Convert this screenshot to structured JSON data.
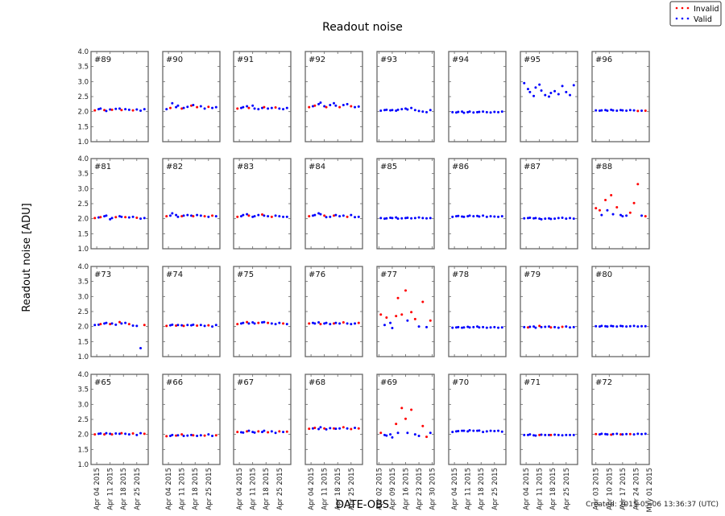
{
  "chart_data": {
    "type": "scatter",
    "title": "Readout noise",
    "ylabel": "Readout noise [ADU]",
    "xlabel": "DATE-OBS",
    "footer": "Created: 2015-05-06 13:36:37 (UTC)",
    "ylim": [
      1.0,
      4.0
    ],
    "yticks": [
      "1.0",
      "1.5",
      "2.0",
      "2.5",
      "3.0",
      "3.5",
      "4.0"
    ],
    "xlim_days_april_2015": [
      1,
      31
    ],
    "days": [
      3,
      5,
      6,
      8,
      9,
      11,
      12,
      14,
      16,
      17,
      19,
      21,
      23,
      25,
      27,
      29
    ],
    "legend": {
      "position": "top-right",
      "entries": [
        {
          "label": "Invalid",
          "color": "#ff0000"
        },
        {
          "label": "Valid",
          "color": "#0000ff"
        }
      ]
    },
    "xtick_sets": {
      "a": {
        "days": [
          4,
          11,
          18,
          25
        ],
        "labels": [
          "Apr 04 2015",
          "Apr 11 2015",
          "Apr 18 2015",
          "Apr 25 2015"
        ]
      },
      "b": {
        "days": [
          2,
          9,
          16,
          23,
          30
        ],
        "labels": [
          "Apr 02 2015",
          "Apr 09 2015",
          "Apr 16 2015",
          "Apr 23 2015",
          "Apr 30 2015"
        ]
      },
      "c": {
        "days": [
          3,
          10,
          17,
          24,
          31
        ],
        "labels": [
          "Apr 03 2015",
          "Apr 10 2015",
          "Apr 17 2015",
          "Apr 24 2015",
          "May 01 2015"
        ]
      }
    },
    "column_ticks": [
      "a",
      "a",
      "a",
      "a",
      "b",
      "a",
      "a",
      "c"
    ],
    "panels": [
      {
        "label": "#89",
        "values": [
          2.04,
          2.08,
          2.1,
          2.05,
          2.02,
          2.07,
          2.06,
          2.09,
          2.1,
          2.05,
          2.08,
          2.06,
          2.04,
          2.07,
          2.03,
          2.08
        ],
        "invalid": [
          0,
          3,
          6,
          9,
          12
        ]
      },
      {
        "label": "#90",
        "values": [
          2.08,
          2.12,
          2.28,
          2.15,
          2.2,
          2.1,
          2.12,
          2.16,
          2.2,
          2.22,
          2.15,
          2.18,
          2.1,
          2.16,
          2.12,
          2.15
        ],
        "invalid": [
          1,
          5,
          8,
          10,
          13
        ]
      },
      {
        "label": "#91",
        "values": [
          2.1,
          2.12,
          2.15,
          2.18,
          2.12,
          2.2,
          2.1,
          2.08,
          2.12,
          2.15,
          2.1,
          2.12,
          2.14,
          2.1,
          2.08,
          2.12
        ],
        "invalid": [
          0,
          4,
          9,
          12
        ]
      },
      {
        "label": "#92",
        "values": [
          2.15,
          2.18,
          2.2,
          2.25,
          2.3,
          2.18,
          2.15,
          2.22,
          2.28,
          2.2,
          2.15,
          2.22,
          2.25,
          2.18,
          2.15,
          2.17
        ],
        "invalid": [
          0,
          2,
          6,
          10,
          13
        ]
      },
      {
        "label": "#93",
        "values": [
          2.03,
          2.05,
          2.06,
          2.04,
          2.05,
          2.03,
          2.06,
          2.08,
          2.1,
          2.07,
          2.12,
          2.05,
          2.02,
          2.0,
          1.98,
          2.05
        ],
        "invalid": []
      },
      {
        "label": "#94",
        "values": [
          1.98,
          1.97,
          1.99,
          2.0,
          1.96,
          1.98,
          2.0,
          1.97,
          1.98,
          1.99,
          2.0,
          1.98,
          1.97,
          1.99,
          1.98,
          2.0
        ],
        "invalid": []
      },
      {
        "label": "#95",
        "values": [
          2.95,
          2.75,
          2.65,
          2.52,
          2.8,
          2.9,
          2.7,
          2.55,
          2.5,
          2.62,
          2.68,
          2.58,
          2.85,
          2.65,
          2.55,
          2.88
        ],
        "invalid": []
      },
      {
        "label": "#96",
        "values": [
          2.04,
          2.03,
          2.04,
          2.05,
          2.03,
          2.06,
          2.04,
          2.03,
          2.05,
          2.04,
          2.03,
          2.05,
          2.04,
          2.02,
          2.03,
          2.03
        ],
        "invalid": [
          13,
          15
        ]
      },
      {
        "label": "#81",
        "values": [
          2.02,
          2.04,
          2.05,
          2.08,
          2.1,
          1.98,
          2.02,
          2.05,
          2.08,
          2.06,
          2.05,
          2.04,
          2.06,
          2.03,
          2.0,
          2.02
        ],
        "invalid": [
          0,
          2,
          7,
          10,
          13
        ]
      },
      {
        "label": "#82",
        "values": [
          2.08,
          2.1,
          2.18,
          2.12,
          2.06,
          2.08,
          2.1,
          2.12,
          2.1,
          2.08,
          2.12,
          2.1,
          2.08,
          2.06,
          2.1,
          2.08
        ],
        "invalid": [
          0,
          5,
          9,
          12,
          14
        ]
      },
      {
        "label": "#83",
        "values": [
          2.06,
          2.08,
          2.12,
          2.15,
          2.1,
          2.06,
          2.08,
          2.12,
          2.14,
          2.1,
          2.08,
          2.06,
          2.1,
          2.08,
          2.06,
          2.06
        ],
        "invalid": [
          0,
          4,
          8,
          11
        ]
      },
      {
        "label": "#84",
        "values": [
          2.08,
          2.1,
          2.12,
          2.18,
          2.15,
          2.1,
          2.05,
          2.06,
          2.1,
          2.12,
          2.08,
          2.1,
          2.06,
          2.12,
          2.05,
          2.06
        ],
        "invalid": [
          0,
          5,
          8,
          12
        ]
      },
      {
        "label": "#85",
        "values": [
          2.02,
          2.0,
          2.01,
          2.03,
          2.02,
          2.04,
          2.0,
          2.01,
          2.02,
          2.03,
          2.01,
          2.02,
          2.04,
          2.02,
          2.01,
          2.02
        ],
        "invalid": []
      },
      {
        "label": "#86",
        "values": [
          2.06,
          2.08,
          2.09,
          2.07,
          2.06,
          2.08,
          2.1,
          2.08,
          2.09,
          2.07,
          2.1,
          2.06,
          2.08,
          2.07,
          2.06,
          2.08
        ],
        "invalid": []
      },
      {
        "label": "#87",
        "values": [
          2.01,
          2.02,
          2.03,
          2.01,
          2.02,
          2.0,
          1.98,
          2.0,
          2.01,
          1.99,
          2.0,
          2.02,
          2.03,
          2.0,
          2.02,
          2.0
        ],
        "invalid": []
      },
      {
        "label": "#88",
        "values": [
          2.35,
          2.28,
          2.12,
          2.62,
          2.28,
          2.78,
          2.15,
          2.38,
          2.12,
          2.08,
          2.1,
          2.2,
          2.52,
          3.15,
          2.1,
          2.08
        ],
        "invalid": [
          0,
          1,
          3,
          5,
          7,
          11,
          12,
          13,
          15
        ]
      },
      {
        "label": "#73",
        "values": [
          2.05,
          2.06,
          2.08,
          2.1,
          2.12,
          2.08,
          2.1,
          2.06,
          2.15,
          2.1,
          2.12,
          2.08,
          2.03,
          2.02,
          1.28,
          2.05
        ],
        "invalid": [
          2,
          5,
          8,
          11,
          15
        ]
      },
      {
        "label": "#74",
        "values": [
          2.02,
          2.04,
          2.06,
          2.03,
          2.05,
          2.04,
          2.02,
          2.05,
          2.04,
          2.06,
          2.03,
          2.05,
          2.02,
          2.04,
          2.0,
          2.05
        ],
        "invalid": [
          0,
          3,
          6,
          10,
          13
        ]
      },
      {
        "label": "#75",
        "values": [
          2.08,
          2.1,
          2.12,
          2.15,
          2.1,
          2.14,
          2.1,
          2.12,
          2.14,
          2.15,
          2.12,
          2.1,
          2.08,
          2.12,
          2.1,
          2.08
        ],
        "invalid": [
          0,
          3,
          7,
          10,
          14
        ]
      },
      {
        "label": "#76",
        "values": [
          2.1,
          2.12,
          2.1,
          2.14,
          2.08,
          2.1,
          2.12,
          2.08,
          2.1,
          2.12,
          2.1,
          2.14,
          2.1,
          2.08,
          2.1,
          2.12
        ],
        "invalid": [
          0,
          4,
          8,
          11,
          15
        ]
      },
      {
        "label": "#77",
        "values": [
          2.4,
          2.05,
          2.3,
          2.12,
          1.95,
          2.35,
          2.95,
          2.4,
          3.2,
          2.2,
          2.48,
          2.25,
          2.0,
          2.82,
          1.98,
          2.2
        ],
        "invalid": [
          0,
          2,
          5,
          6,
          7,
          8,
          10,
          11,
          13,
          15
        ]
      },
      {
        "label": "#78",
        "values": [
          1.96,
          1.97,
          1.98,
          1.96,
          1.97,
          1.99,
          1.97,
          1.98,
          2.0,
          1.97,
          1.98,
          1.96,
          1.97,
          1.98,
          1.96,
          1.97
        ],
        "invalid": []
      },
      {
        "label": "#79",
        "values": [
          1.98,
          1.97,
          1.99,
          2.0,
          1.96,
          2.02,
          1.98,
          1.99,
          2.0,
          1.97,
          1.98,
          1.96,
          1.99,
          2.0,
          1.97,
          1.98
        ],
        "invalid": [
          1,
          5,
          9,
          12
        ]
      },
      {
        "label": "#80",
        "values": [
          2.01,
          2.0,
          2.02,
          2.01,
          2.0,
          2.02,
          2.01,
          2.0,
          2.02,
          2.01,
          2.0,
          2.01,
          2.02,
          2.0,
          2.01,
          2.01
        ],
        "invalid": []
      },
      {
        "label": "#65",
        "values": [
          2.0,
          2.02,
          2.03,
          2.0,
          2.04,
          2.02,
          2.0,
          2.03,
          2.02,
          2.04,
          2.02,
          2.0,
          2.03,
          1.98,
          2.04,
          2.02
        ],
        "invalid": [
          0,
          3,
          6,
          9,
          12,
          15
        ]
      },
      {
        "label": "#66",
        "values": [
          1.94,
          1.95,
          1.98,
          1.96,
          1.97,
          2.0,
          1.95,
          1.96,
          1.98,
          1.97,
          1.95,
          1.97,
          1.96,
          2.0,
          1.95,
          1.97
        ],
        "invalid": [
          0,
          3,
          5,
          9,
          12,
          15
        ]
      },
      {
        "label": "#67",
        "values": [
          2.08,
          2.07,
          2.06,
          2.1,
          2.12,
          2.08,
          2.06,
          2.1,
          2.08,
          2.12,
          2.07,
          2.1,
          2.05,
          2.1,
          2.08,
          2.09
        ],
        "invalid": [
          0,
          3,
          7,
          10,
          13,
          15
        ]
      },
      {
        "label": "#68",
        "values": [
          2.19,
          2.2,
          2.22,
          2.18,
          2.24,
          2.2,
          2.17,
          2.21,
          2.2,
          2.19,
          2.2,
          2.24,
          2.2,
          2.18,
          2.22,
          2.2
        ],
        "invalid": [
          0,
          2,
          5,
          8,
          11,
          13,
          15
        ]
      },
      {
        "label": "#69",
        "values": [
          2.05,
          1.98,
          1.96,
          2.0,
          1.9,
          2.35,
          2.05,
          2.88,
          2.52,
          2.05,
          2.82,
          2.0,
          1.95,
          2.28,
          1.92,
          2.05
        ],
        "invalid": [
          0,
          5,
          7,
          8,
          10,
          13,
          14
        ]
      },
      {
        "label": "#70",
        "values": [
          2.08,
          2.1,
          2.11,
          2.12,
          2.12,
          2.1,
          2.14,
          2.12,
          2.12,
          2.13,
          2.08,
          2.1,
          2.12,
          2.11,
          2.12,
          2.09
        ],
        "invalid": []
      },
      {
        "label": "#71",
        "values": [
          1.98,
          1.98,
          2.0,
          1.97,
          1.96,
          1.98,
          1.99,
          1.98,
          1.98,
          1.98,
          1.99,
          1.98,
          1.97,
          1.98,
          1.98,
          1.98
        ],
        "invalid": [
          5,
          9
        ]
      },
      {
        "label": "#72",
        "values": [
          2.01,
          2.0,
          2.02,
          2.01,
          2.0,
          1.99,
          2.01,
          2.02,
          2.0,
          2.0,
          2.01,
          2.01,
          2.0,
          2.02,
          2.01,
          2.02
        ],
        "invalid": [
          0,
          5,
          8,
          11
        ]
      }
    ]
  }
}
